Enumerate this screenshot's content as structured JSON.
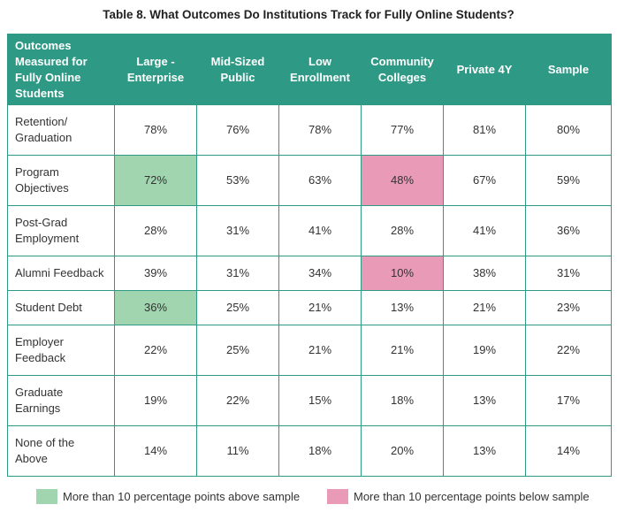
{
  "title": "Table 8. What Outcomes Do Institutions Track for Fully Online Students?",
  "columns": [
    [
      "Outcomes",
      "Measured for",
      "Fully Online",
      "Students"
    ],
    [
      "Large -",
      "Enterprise"
    ],
    [
      "Mid-Sized",
      "Public"
    ],
    [
      "Low",
      "Enrollment"
    ],
    [
      "Community",
      "Colleges"
    ],
    [
      "Private 4Y"
    ],
    [
      "Sample"
    ]
  ],
  "rows": [
    {
      "label": [
        "Retention/",
        "Graduation"
      ],
      "values": [
        "78%",
        "76%",
        "78%",
        "77%",
        "81%",
        "80%"
      ]
    },
    {
      "label": [
        "Program",
        "Objectives"
      ],
      "values": [
        "72%",
        "53%",
        "63%",
        "48%",
        "67%",
        "59%"
      ]
    },
    {
      "label": [
        "Post-Grad",
        "Employment"
      ],
      "values": [
        "28%",
        "31%",
        "41%",
        "28%",
        "41%",
        "36%"
      ]
    },
    {
      "label": [
        "Alumni Feedback"
      ],
      "values": [
        "39%",
        "31%",
        "34%",
        "10%",
        "38%",
        "31%"
      ]
    },
    {
      "label": [
        "Student Debt"
      ],
      "values": [
        "36%",
        "25%",
        "21%",
        "13%",
        "21%",
        "23%"
      ]
    },
    {
      "label": [
        "Employer",
        "Feedback"
      ],
      "values": [
        "22%",
        "25%",
        "21%",
        "21%",
        "19%",
        "22%"
      ]
    },
    {
      "label": [
        "Graduate",
        "Earnings"
      ],
      "values": [
        "19%",
        "22%",
        "15%",
        "18%",
        "13%",
        "17%"
      ]
    },
    {
      "label": [
        "None of the",
        "Above"
      ],
      "values": [
        "14%",
        "11%",
        "18%",
        "20%",
        "13%",
        "14%"
      ]
    }
  ],
  "legend": {
    "above": "More than 10 percentage points above sample",
    "below": "More than 10 percentage points below sample"
  },
  "colors": {
    "header": "#2e9a86",
    "above": "#a0d5b0",
    "below": "#e89ab6"
  }
}
